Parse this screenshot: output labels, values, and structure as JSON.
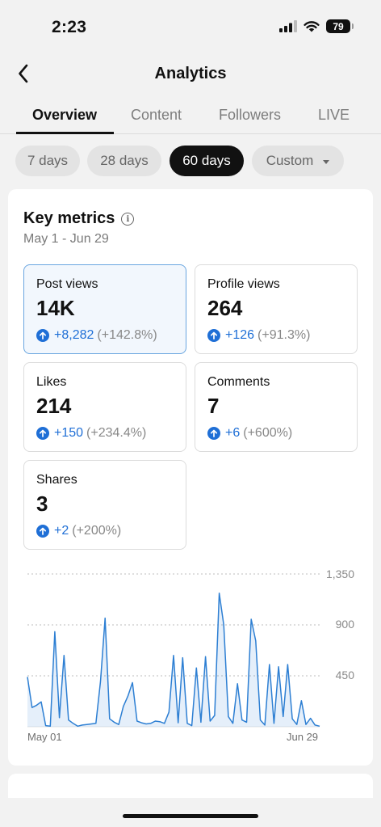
{
  "status_bar": {
    "time": "2:23",
    "battery": "79"
  },
  "header": {
    "title": "Analytics"
  },
  "tabs": [
    {
      "label": "Overview",
      "active": true
    },
    {
      "label": "Content",
      "active": false
    },
    {
      "label": "Followers",
      "active": false
    },
    {
      "label": "LIVE",
      "active": false
    }
  ],
  "ranges": [
    {
      "label": "7 days",
      "active": false
    },
    {
      "label": "28 days",
      "active": false
    },
    {
      "label": "60 days",
      "active": true
    },
    {
      "label": "Custom",
      "active": false
    }
  ],
  "key_metrics": {
    "title": "Key metrics",
    "date_range": "May 1 - Jun 29",
    "metrics": [
      {
        "label": "Post views",
        "value": "14K",
        "delta": "+8,282",
        "pct": "(+142.8%)",
        "selected": true
      },
      {
        "label": "Profile views",
        "value": "264",
        "delta": "+126",
        "pct": "(+91.3%)",
        "selected": false
      },
      {
        "label": "Likes",
        "value": "214",
        "delta": "+150",
        "pct": "(+234.4%)",
        "selected": false
      },
      {
        "label": "Comments",
        "value": "7",
        "delta": "+6",
        "pct": "(+600%)",
        "selected": false
      },
      {
        "label": "Shares",
        "value": "3",
        "delta": "+2",
        "pct": "(+200%)",
        "selected": false
      }
    ]
  },
  "chart_data": {
    "type": "area",
    "title": "",
    "xlabel": "",
    "ylabel": "",
    "y_ticks": [
      "1,350",
      "900",
      "450"
    ],
    "x_tick_labels": [
      "May 01",
      "Jun 29"
    ],
    "ylim": [
      0,
      1350
    ],
    "grid": true,
    "color": "#2d7fd3",
    "series": [
      {
        "values": [
          440,
          170,
          190,
          220,
          10,
          5,
          840,
          80,
          630,
          60,
          30,
          5,
          15,
          20,
          25,
          30,
          400,
          960,
          70,
          40,
          20,
          180,
          270,
          390,
          50,
          35,
          25,
          30,
          50,
          45,
          30,
          130,
          630,
          35,
          610,
          30,
          10,
          520,
          40,
          620,
          50,
          100,
          1180,
          900,
          90,
          30,
          380,
          60,
          40,
          950,
          760,
          60,
          15,
          550,
          30,
          530,
          90,
          550,
          70,
          20,
          230,
          20,
          75,
          15,
          5
        ]
      }
    ]
  }
}
